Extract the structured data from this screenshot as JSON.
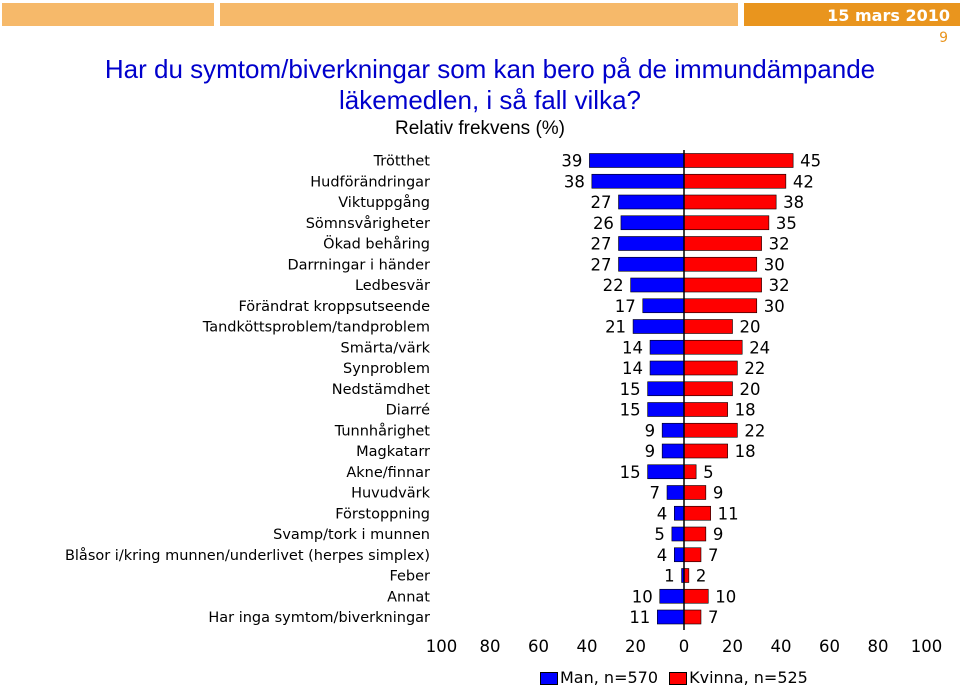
{
  "header": {
    "date": "15 mars 2010",
    "slide_number": "9"
  },
  "chart_data": {
    "type": "bar",
    "title": "Har du symtom/biverkningar som kan bero på de immundämpande läkemedlen, i så fall vilka?",
    "subtitle": "Relativ frekvens (%)",
    "categories": [
      "Trötthet",
      "Hudförändringar",
      "Viktuppgång",
      "Sömnsvårigheter",
      "Ökad behåring",
      "Darrningar i händer",
      "Ledbesvär",
      "Förändrat kroppsutseende",
      "Tandköttsproblem/tandproblem",
      "Smärta/värk",
      "Synproblem",
      "Nedstämdhet",
      "Diarré",
      "Tunnhårighet",
      "Magkatarr",
      "Akne/finnar",
      "Huvudvärk",
      "Förstoppning",
      "Svamp/tork i munnen",
      "Blåsor i/kring munnen/underlivet (herpes simplex)",
      "Feber",
      "Annat",
      "Har inga symtom/biverkningar"
    ],
    "series": [
      {
        "name": "Man, n=570",
        "color": "#0000ff",
        "values": [
          39,
          38,
          27,
          26,
          27,
          27,
          22,
          17,
          21,
          14,
          14,
          15,
          15,
          9,
          9,
          15,
          7,
          4,
          5,
          4,
          1,
          10,
          11
        ]
      },
      {
        "name": "Kvinna, n=525",
        "color": "#ff0000",
        "values": [
          45,
          42,
          38,
          35,
          32,
          30,
          32,
          30,
          20,
          24,
          22,
          20,
          18,
          22,
          18,
          5,
          9,
          11,
          9,
          7,
          2,
          10,
          7
        ]
      }
    ],
    "xticks": [
      "100",
      "80",
      "60",
      "40",
      "20",
      "0",
      "20",
      "40",
      "60",
      "80",
      "100"
    ],
    "xlim": [
      -100,
      100
    ],
    "orientation": "horizontal-butterfly",
    "legend": "bottom"
  }
}
